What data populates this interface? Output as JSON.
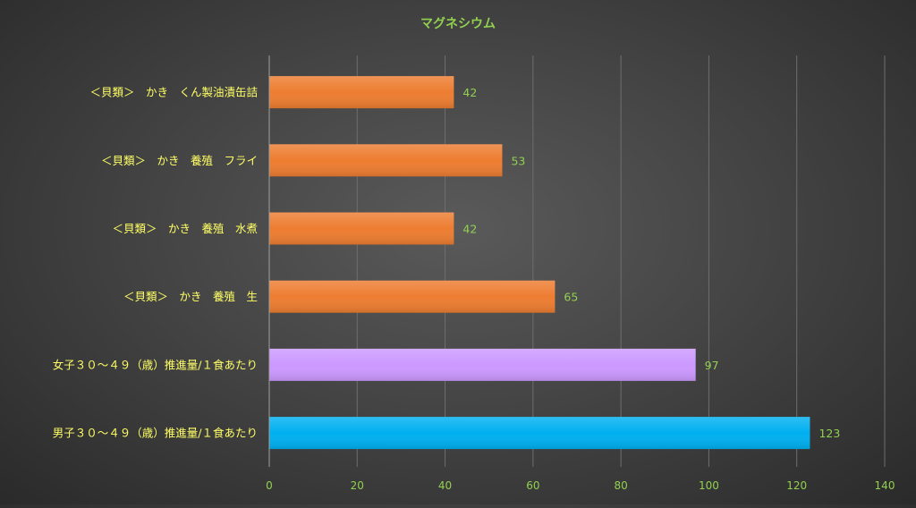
{
  "chart_data": {
    "type": "bar",
    "orientation": "horizontal",
    "title": "マグネシウム",
    "categories": [
      "＜貝類＞　かき　くん製油漬缶詰",
      "＜貝類＞　かき　養殖　フライ",
      "＜貝類＞　かき　養殖　水煮",
      "＜貝類＞　かき　養殖　生",
      "女子３０～４９（歳）推進量/１食あたり",
      "男子３０～４９（歳）推進量/１食あたり"
    ],
    "values": [
      42,
      53,
      42,
      65,
      97,
      123
    ],
    "value_labels": [
      "42",
      "53",
      "42",
      "65",
      "97",
      "123"
    ],
    "bar_colors": [
      "#ED7D31",
      "#ED7D31",
      "#ED7D31",
      "#ED7D31",
      "#CC99FF",
      "#00B0F0"
    ],
    "xlim": [
      0,
      140
    ],
    "x_ticks": [
      0,
      20,
      40,
      60,
      80,
      100,
      120,
      140
    ],
    "x_tick_labels": [
      "0",
      "20",
      "40",
      "60",
      "80",
      "100",
      "120",
      "140"
    ],
    "grid": "vertical",
    "colors": {
      "title": "#92D050",
      "category_labels": "#FFFF66",
      "tick_labels": "#92D050",
      "data_labels": "#92D050",
      "gridlines": "#6e6e6e"
    }
  }
}
